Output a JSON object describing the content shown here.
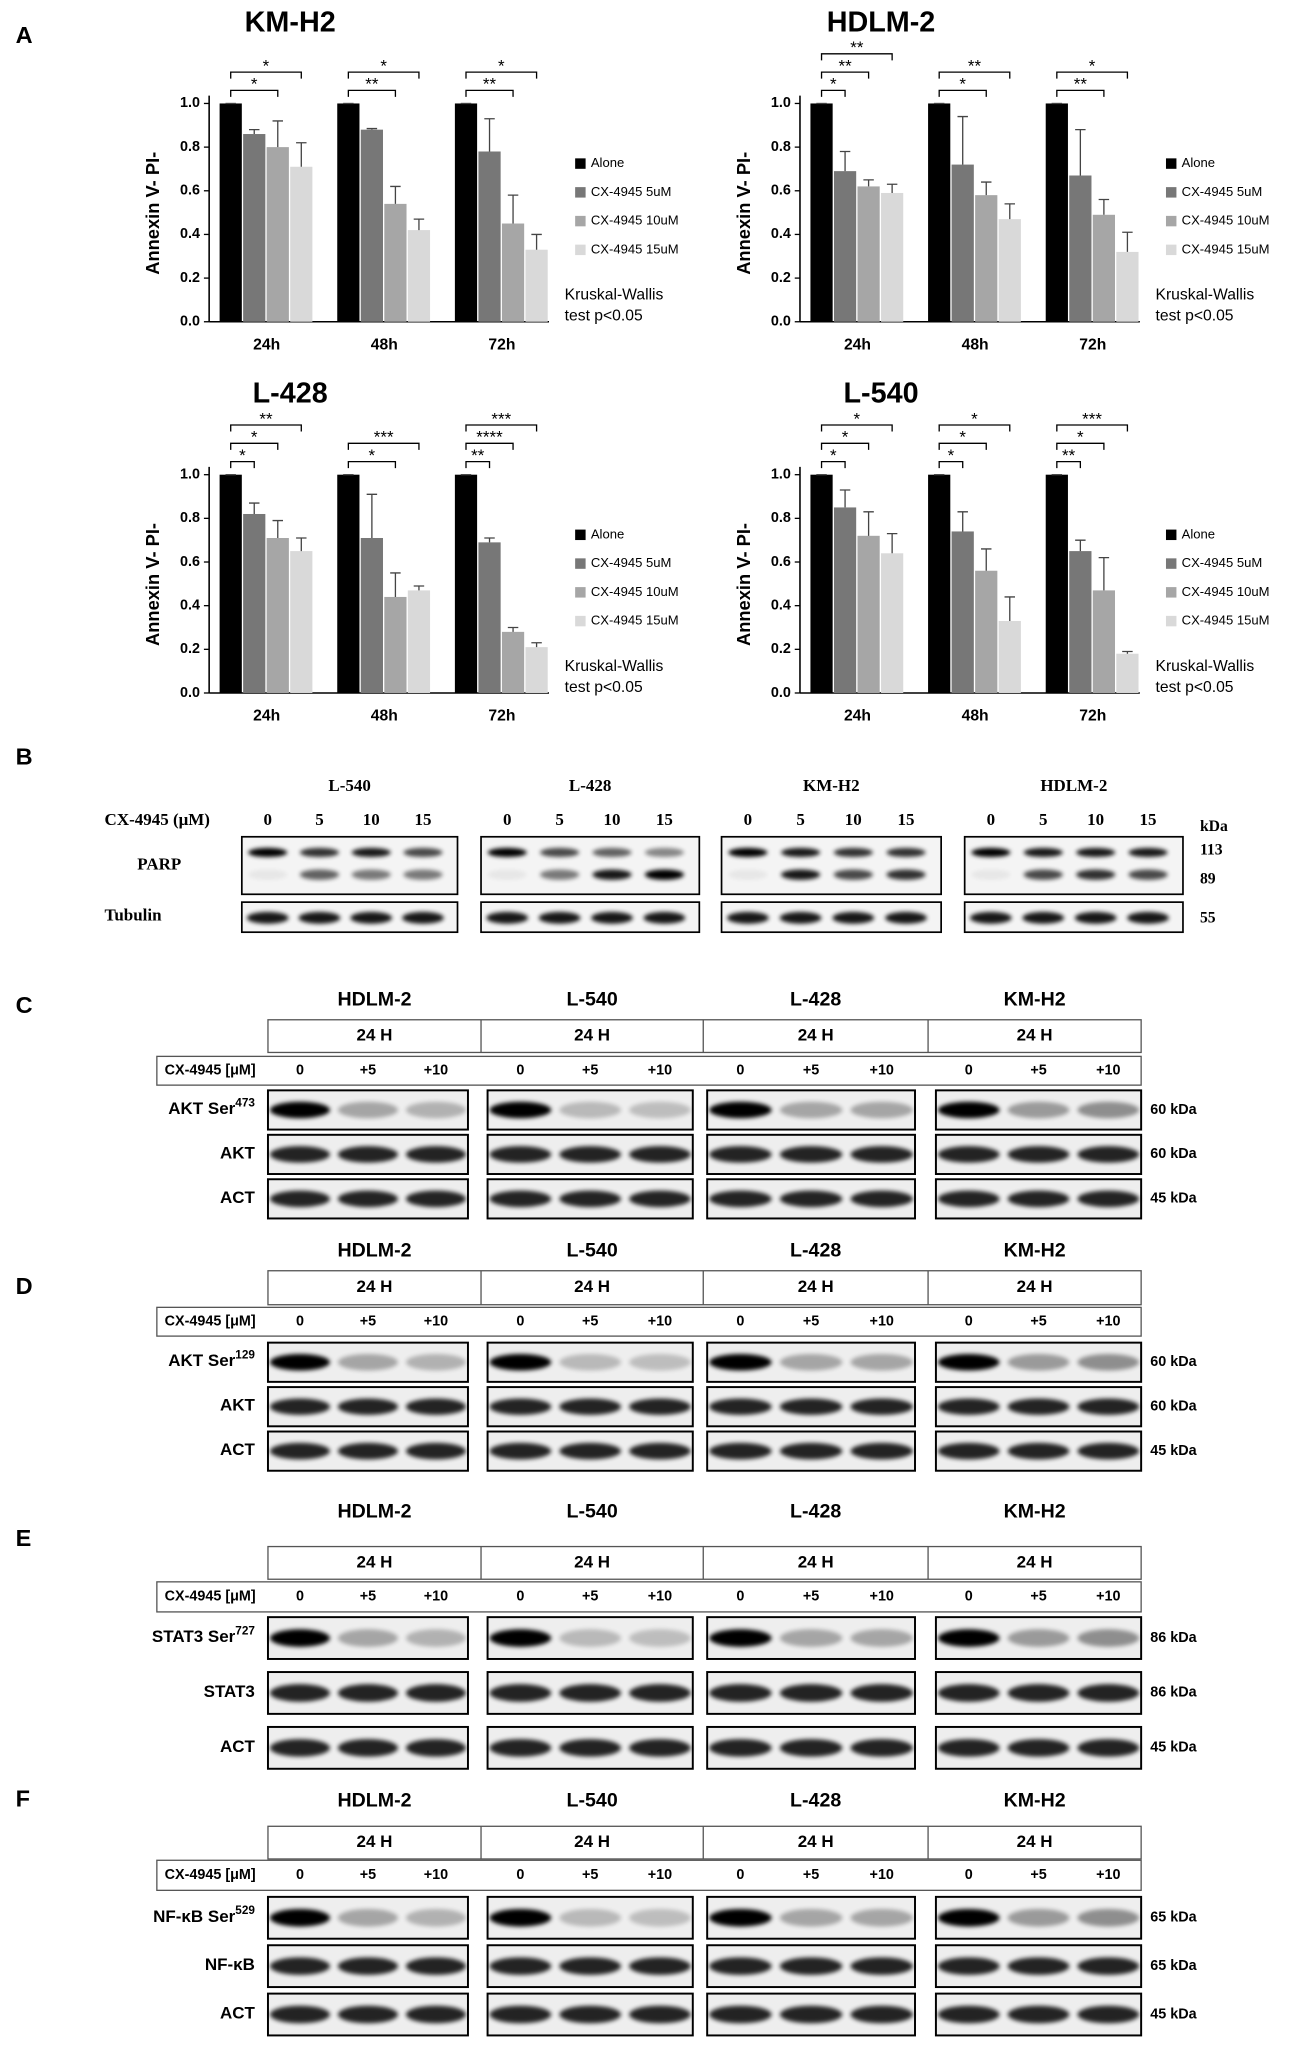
{
  "panel_labels": [
    "A",
    "B",
    "C",
    "D",
    "E",
    "F"
  ],
  "chart_data": [
    {
      "type": "bar",
      "title": "KM-H2",
      "categories": [
        "24h",
        "48h",
        "72h"
      ],
      "ylabel": "Annexin V- PI-",
      "ylim": [
        0,
        1
      ],
      "yticks": [
        {
          "value": 0,
          "label": "0.0"
        },
        0.2,
        0.4,
        0.6,
        0.8,
        {
          "value": 1,
          "label": "1.0"
        }
      ],
      "series": [
        {
          "name": "Alone",
          "color": "#000000",
          "values": [
            1,
            1,
            1
          ],
          "errors": [
            0,
            0,
            0
          ]
        },
        {
          "name": "CX-4945 5uM",
          "color": "#777777",
          "values": [
            0.86,
            0.88,
            0.78
          ],
          "errors": [
            0.02,
            0.005,
            0.15
          ]
        },
        {
          "name": "CX-4945 10uM",
          "color": "#a6a6a6",
          "values": [
            0.8,
            0.54,
            0.45
          ],
          "errors": [
            0.12,
            0.08,
            0.13
          ]
        },
        {
          "name": "CX-4945 15uM",
          "color": "#d9d9d9",
          "values": [
            0.71,
            0.42,
            0.33
          ],
          "errors": [
            0.11,
            0.05,
            0.07
          ]
        }
      ],
      "significance": [
        [
          "*",
          "*"
        ],
        [
          "**",
          "*"
        ],
        [
          "**",
          "*"
        ]
      ],
      "note": [
        "Kruskal-Wallis",
        "test p<0.05"
      ]
    },
    {
      "type": "bar",
      "title": "HDLM-2",
      "categories": [
        "24h",
        "48h",
        "72h"
      ],
      "ylabel": "Annexin V- PI-",
      "ylim": [
        0,
        1
      ],
      "yticks": [
        {
          "value": 0,
          "label": "0.0"
        },
        0.2,
        0.4,
        0.6,
        0.8,
        {
          "value": 1,
          "label": "1.0"
        }
      ],
      "series": [
        {
          "name": "Alone",
          "color": "#000000",
          "values": [
            1,
            1,
            1
          ],
          "errors": [
            0,
            0,
            0
          ]
        },
        {
          "name": "CX-4945 5uM",
          "color": "#777777",
          "values": [
            0.69,
            0.72,
            0.67
          ],
          "errors": [
            0.09,
            0.22,
            0.21
          ]
        },
        {
          "name": "CX-4945 10uM",
          "color": "#a6a6a6",
          "values": [
            0.62,
            0.58,
            0.49
          ],
          "errors": [
            0.03,
            0.06,
            0.07
          ]
        },
        {
          "name": "CX-4945 15uM",
          "color": "#d9d9d9",
          "values": [
            0.59,
            0.47,
            0.32
          ],
          "errors": [
            0.04,
            0.07,
            0.09
          ]
        }
      ],
      "significance": [
        [
          "*",
          "**",
          "**"
        ],
        [
          "*",
          "**"
        ],
        [
          "**",
          "*"
        ]
      ],
      "note": [
        "Kruskal-Wallis",
        "test p<0.05"
      ]
    },
    {
      "type": "bar",
      "title": "L-428",
      "categories": [
        "24h",
        "48h",
        "72h"
      ],
      "ylabel": "Annexin V- PI-",
      "ylim": [
        0,
        1
      ],
      "yticks": [
        {
          "value": 0,
          "label": "0.0"
        },
        0.2,
        0.4,
        0.6,
        0.8,
        {
          "value": 1,
          "label": "1.0"
        }
      ],
      "series": [
        {
          "name": "Alone",
          "color": "#000000",
          "values": [
            1,
            1,
            1
          ],
          "errors": [
            0,
            0,
            0
          ]
        },
        {
          "name": "CX-4945 5uM",
          "color": "#777777",
          "values": [
            0.82,
            0.71,
            0.69
          ],
          "errors": [
            0.05,
            0.2,
            0.02
          ]
        },
        {
          "name": "CX-4945 10uM",
          "color": "#a6a6a6",
          "values": [
            0.71,
            0.44,
            0.28
          ],
          "errors": [
            0.08,
            0.11,
            0.02
          ]
        },
        {
          "name": "CX-4945 15uM",
          "color": "#d9d9d9",
          "values": [
            0.65,
            0.47,
            0.21
          ],
          "errors": [
            0.06,
            0.02,
            0.02
          ]
        }
      ],
      "significance": [
        [
          "*",
          "*",
          "**"
        ],
        [
          "*",
          "***"
        ],
        [
          "**",
          "****",
          "***"
        ]
      ],
      "note": [
        "Kruskal-Wallis",
        "test p<0.05"
      ]
    },
    {
      "type": "bar",
      "title": "L-540",
      "categories": [
        "24h",
        "48h",
        "72h"
      ],
      "ylabel": "Annexin V- PI-",
      "ylim": [
        0,
        1
      ],
      "yticks": [
        {
          "value": 0,
          "label": "0.0"
        },
        0.2,
        0.4,
        0.6,
        0.8,
        {
          "value": 1,
          "label": "1.0"
        }
      ],
      "series": [
        {
          "name": "Alone",
          "color": "#000000",
          "values": [
            1,
            1,
            1
          ],
          "errors": [
            0,
            0,
            0
          ]
        },
        {
          "name": "CX-4945 5uM",
          "color": "#777777",
          "values": [
            0.85,
            0.74,
            0.65
          ],
          "errors": [
            0.08,
            0.09,
            0.05
          ]
        },
        {
          "name": "CX-4945 10uM",
          "color": "#a6a6a6",
          "values": [
            0.72,
            0.56,
            0.47
          ],
          "errors": [
            0.11,
            0.1,
            0.15
          ]
        },
        {
          "name": "CX-4945 15uM",
          "color": "#d9d9d9",
          "values": [
            0.64,
            0.33,
            0.18
          ],
          "errors": [
            0.09,
            0.11,
            0.01
          ]
        }
      ],
      "significance": [
        [
          "*",
          "*",
          "*"
        ],
        [
          "*",
          "*",
          "*"
        ],
        [
          "**",
          "*",
          "***"
        ]
      ],
      "note": [
        "Kruskal-Wallis",
        "test p<0.05"
      ]
    }
  ],
  "blot_b": {
    "cell_lines": [
      "L-540",
      "L-428",
      "KM-H2",
      "HDLM-2"
    ],
    "treatment_label": "CX-4945 (μM)",
    "doses": [
      "0",
      "5",
      "10",
      "15"
    ],
    "unit": "kDa",
    "rows": [
      {
        "label": "PARP",
        "sizes": [
          "113",
          "89"
        ]
      },
      {
        "label": "Tubulin",
        "sizes": [
          "55"
        ]
      }
    ]
  },
  "blot_panels": [
    {
      "cell_lines": [
        "HDLM-2",
        "L-540",
        "L-428",
        "KM-H2"
      ],
      "time": "24 H",
      "treatment_label": "CX-4945 [μM]",
      "doses": [
        "0",
        "+5",
        "+10"
      ],
      "rows": [
        {
          "label": "AKT Ser",
          "sup": "473",
          "kda": "60 kDa"
        },
        {
          "label": "AKT",
          "kda": "60 kDa"
        },
        {
          "label": "ACT",
          "kda": "45 kDa"
        }
      ]
    },
    {
      "cell_lines": [
        "HDLM-2",
        "L-540",
        "L-428",
        "KM-H2"
      ],
      "time": "24 H",
      "treatment_label": "CX-4945 [μM]",
      "doses": [
        "0",
        "+5",
        "+10"
      ],
      "rows": [
        {
          "label": "AKT Ser",
          "sup": "129",
          "kda": "60 kDa"
        },
        {
          "label": "AKT",
          "kda": "60 kDa"
        },
        {
          "label": "ACT",
          "kda": "45 kDa"
        }
      ]
    },
    {
      "cell_lines": [
        "HDLM-2",
        "L-540",
        "L-428",
        "KM-H2"
      ],
      "time": "24 H",
      "treatment_label": "CX-4945 [μM]",
      "doses": [
        "0",
        "+5",
        "+10"
      ],
      "rows": [
        {
          "label": "STAT3 Ser",
          "sup": "727",
          "kda": "86 kDa"
        },
        {
          "label": "STAT3",
          "kda": "86 kDa"
        },
        {
          "label": "ACT",
          "kda": "45 kDa"
        }
      ]
    },
    {
      "cell_lines": [
        "HDLM-2",
        "L-540",
        "L-428",
        "KM-H2"
      ],
      "time": "24 H",
      "treatment_label": "CX-4945 [μM]",
      "doses": [
        "0",
        "+5",
        "+10"
      ],
      "rows": [
        {
          "label": "NF-κB Ser",
          "sup": "529",
          "kda": "65 kDa"
        },
        {
          "label": "NF-κB",
          "kda": "65 kDa"
        },
        {
          "label": "ACT",
          "kda": "45 kDa"
        }
      ]
    }
  ]
}
